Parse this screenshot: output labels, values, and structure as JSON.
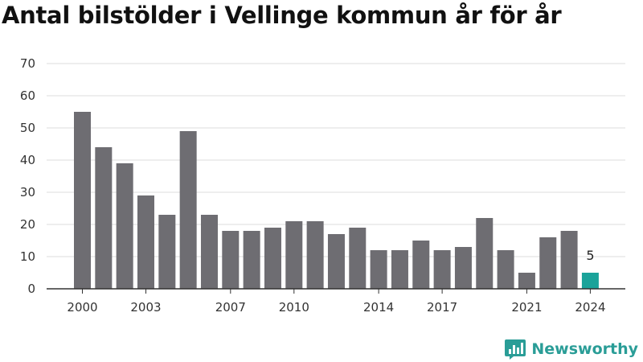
{
  "chart_data": {
    "type": "bar",
    "title": "Antal bilstölder i Vellinge kommun år för år",
    "xlabel": "",
    "ylabel": "",
    "categories": [
      "2000",
      "2001",
      "2002",
      "2003",
      "2004",
      "2005",
      "2006",
      "2007",
      "2008",
      "2009",
      "2010",
      "2011",
      "2012",
      "2013",
      "2014",
      "2015",
      "2016",
      "2017",
      "2018",
      "2019",
      "2020",
      "2021",
      "2022",
      "2023",
      "2024"
    ],
    "values": [
      55,
      44,
      39,
      29,
      23,
      49,
      23,
      18,
      18,
      19,
      21,
      21,
      17,
      19,
      12,
      12,
      15,
      12,
      13,
      22,
      12,
      5,
      16,
      18,
      5
    ],
    "x_tick_labels": [
      "2000",
      "2003",
      "2007",
      "2010",
      "2014",
      "2017",
      "2021",
      "2024"
    ],
    "y_ticks": [
      0,
      10,
      20,
      30,
      40,
      50,
      60,
      70
    ],
    "ylim": [
      0,
      70
    ],
    "grid": true,
    "highlight": {
      "category": "2024",
      "label": "5"
    },
    "colors": {
      "bar": "#6e6d72",
      "highlight": "#1aa39a",
      "grid": "#dddddd",
      "axis": "#333333"
    }
  },
  "brand": {
    "name": "Newsworthy",
    "color": "#2a9d97",
    "icon": "newsworthy-logo-icon"
  }
}
